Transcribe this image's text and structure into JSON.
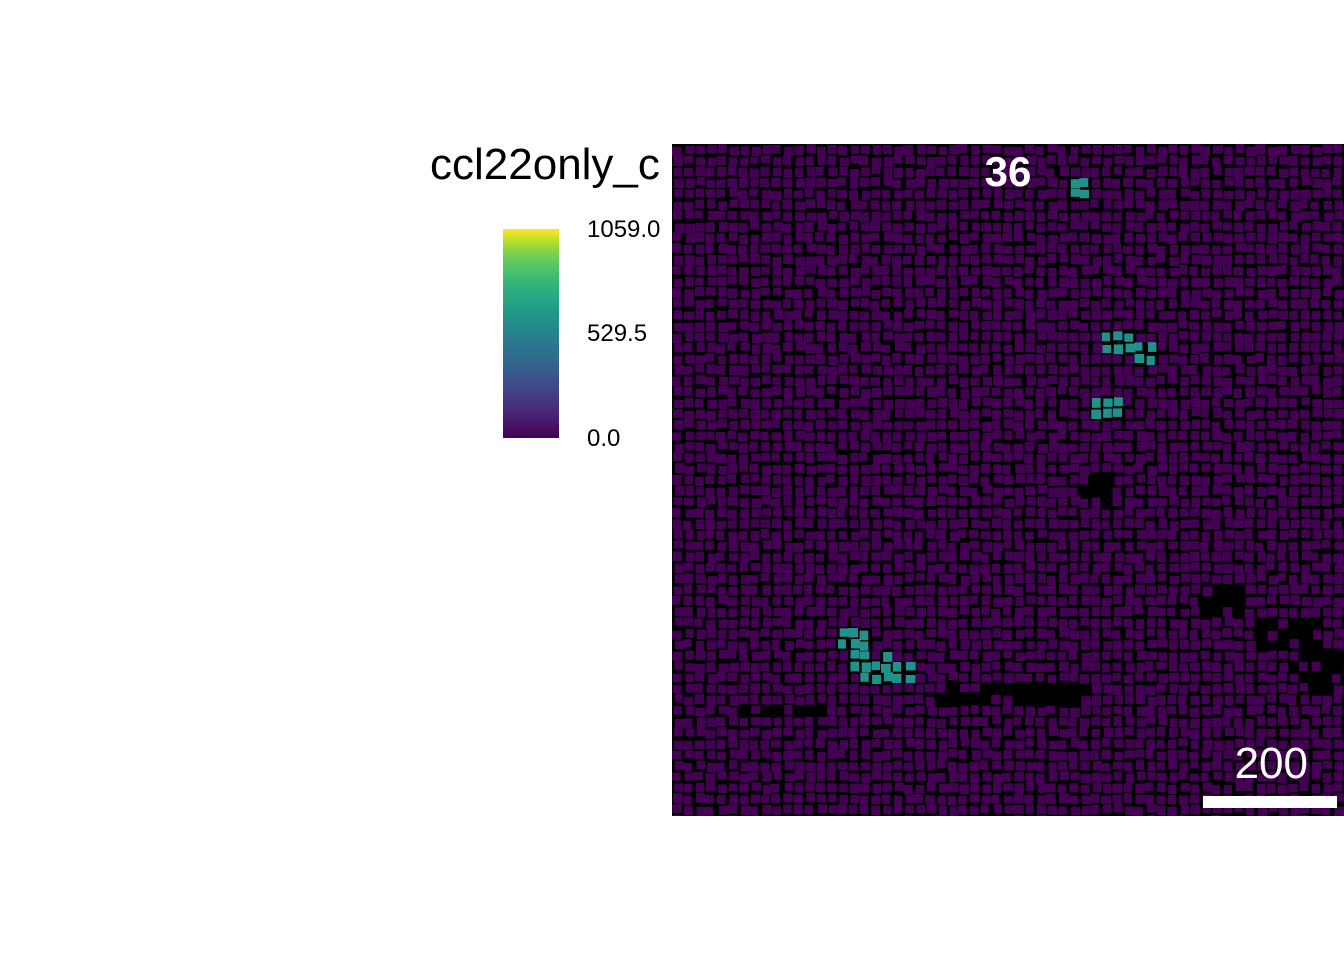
{
  "title": "ccl22only_c",
  "colorbar": {
    "colormap": "viridis",
    "ticks": [
      "1059.0",
      "529.5",
      "0.0"
    ],
    "min": 0.0,
    "max": 1059.0
  },
  "panel": {
    "label": "36",
    "scale_bar_label": "200",
    "background_color": "#000000",
    "low_cell_color": "#440154",
    "high_cell_color": "#21918c"
  }
}
